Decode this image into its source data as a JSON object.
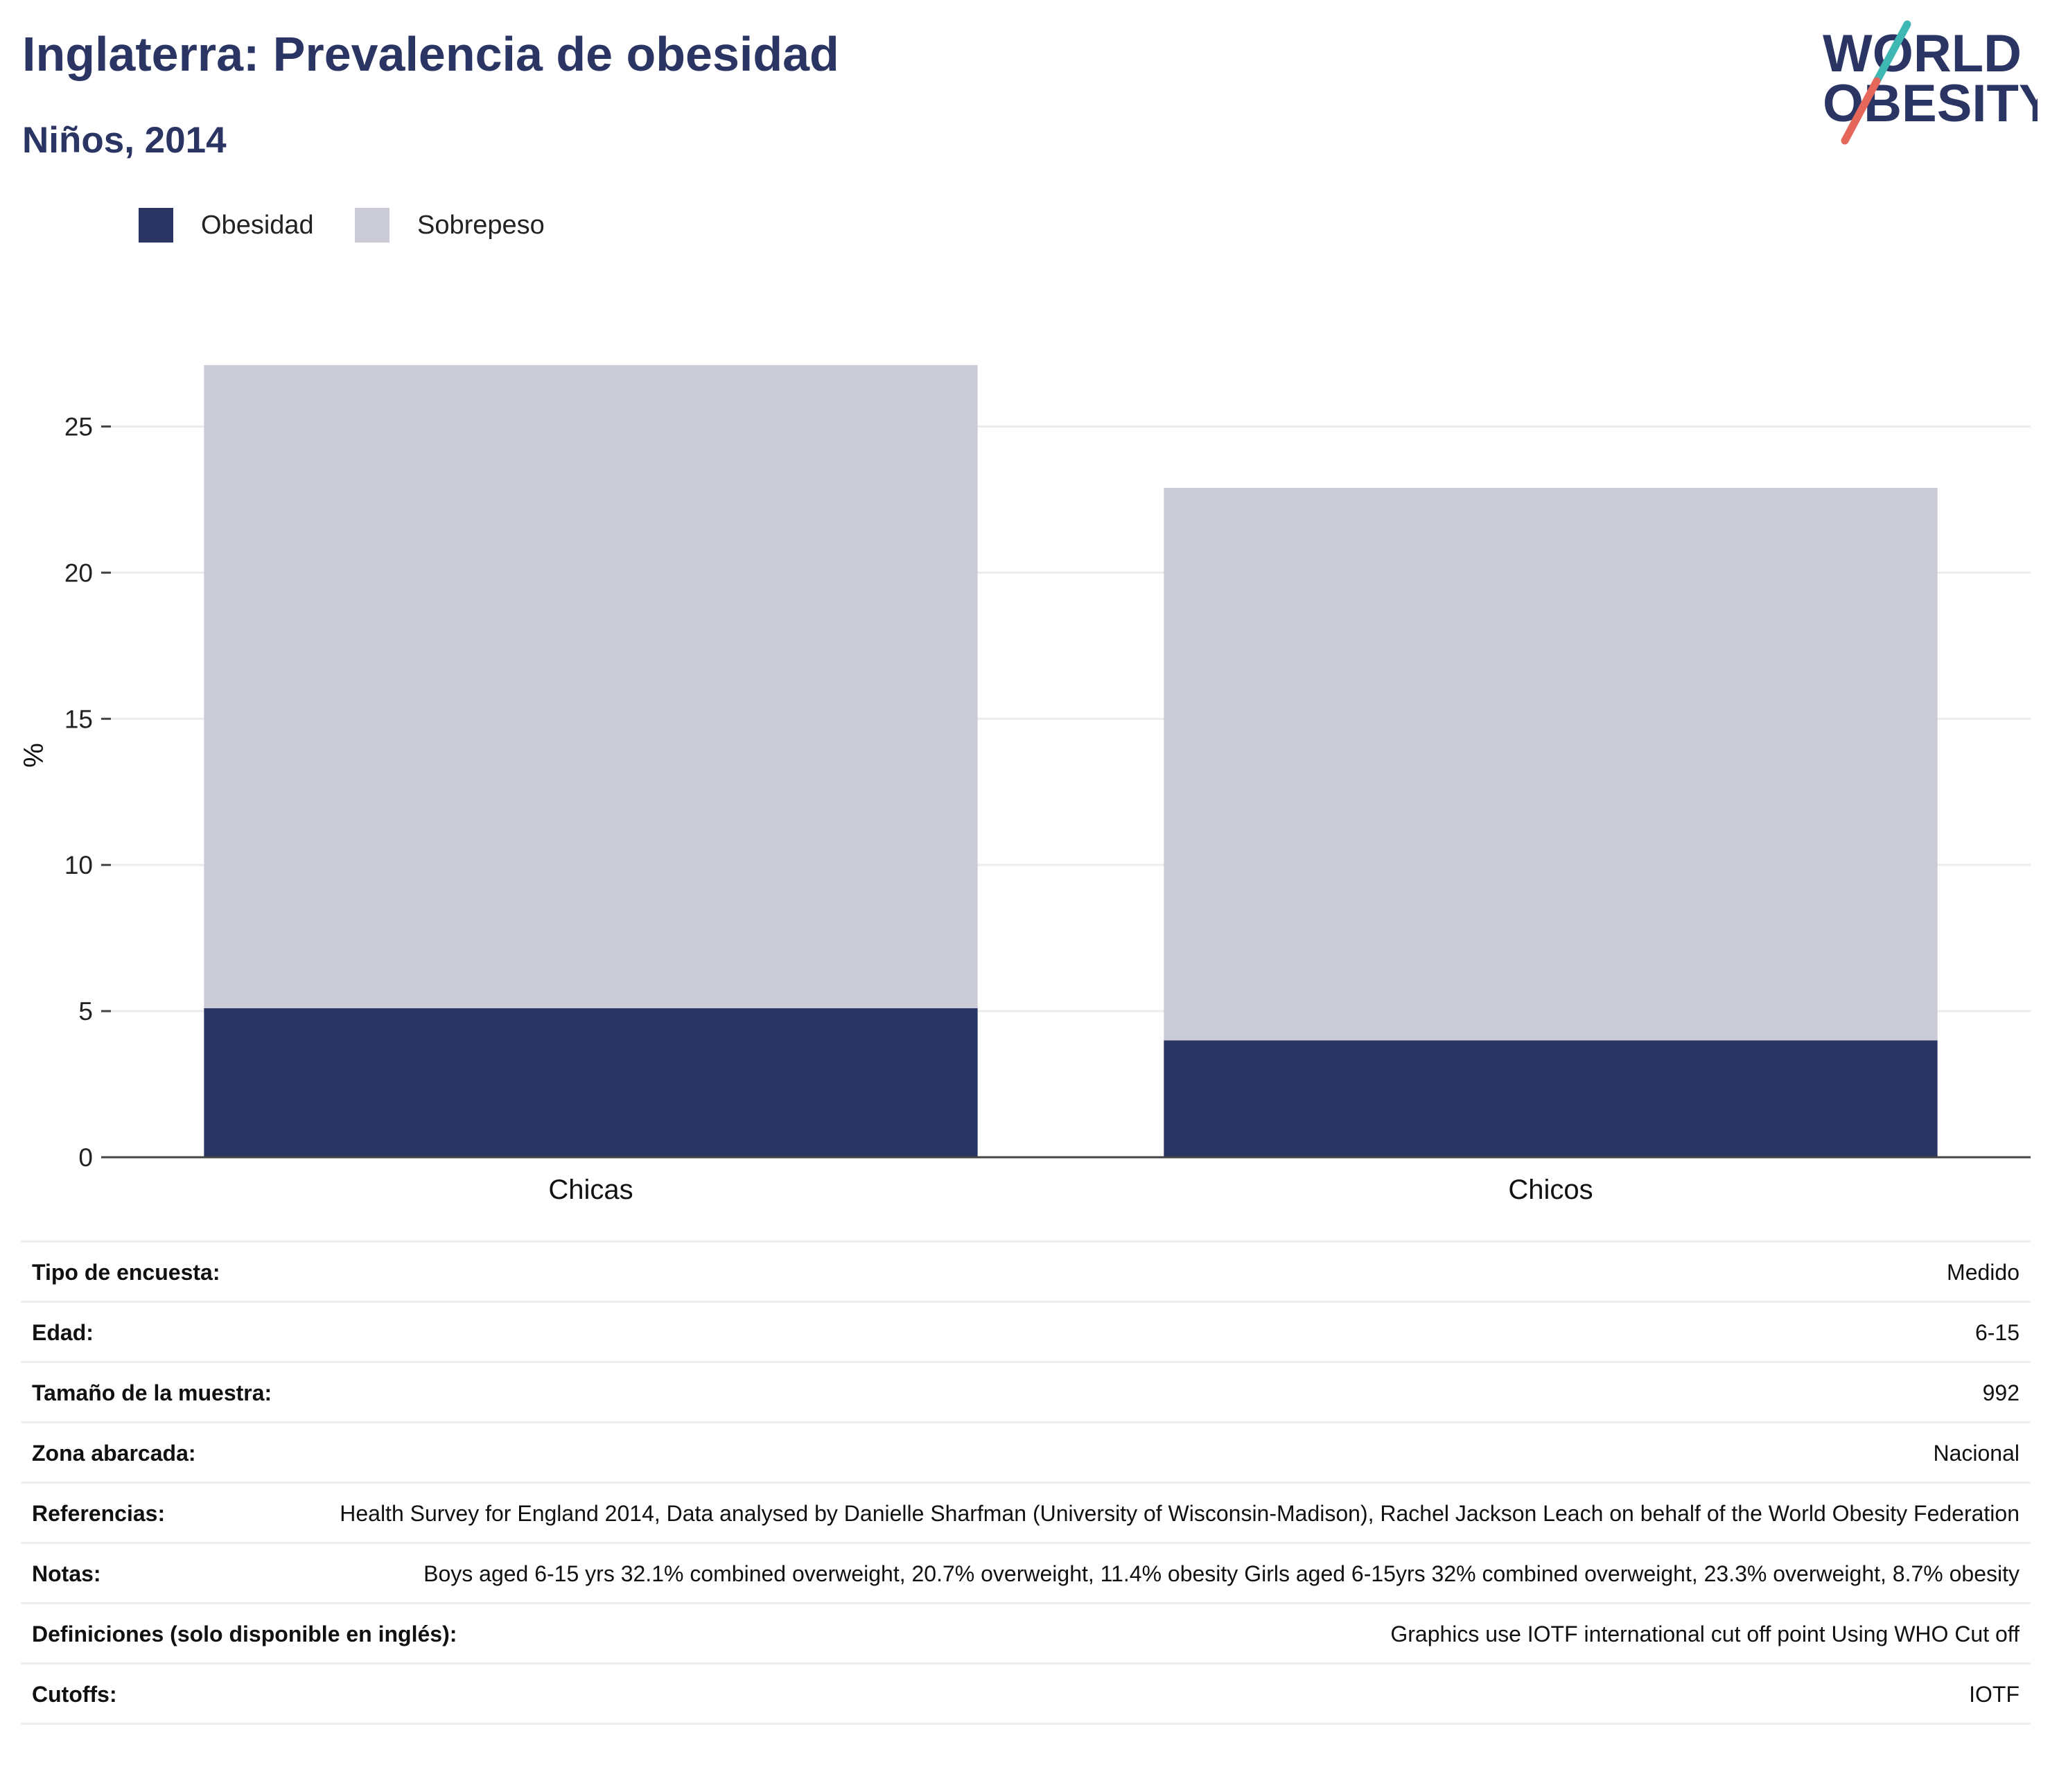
{
  "header": {
    "title": "Inglaterra: Prevalencia de obesidad",
    "subtitle": "Niños, 2014"
  },
  "logo": {
    "line1": "WORLD",
    "line2": "OBESITY",
    "colors": {
      "text": "#2b3564",
      "slash_top": "#3fb8b4",
      "slash_bottom": "#e4675a"
    }
  },
  "legend": [
    {
      "label": "Obesidad",
      "color": "#2b3564"
    },
    {
      "label": "Sobrepeso",
      "color": "#cacbd7"
    }
  ],
  "chart_data": {
    "type": "bar",
    "stacked": true,
    "categories": [
      "Chicas",
      "Chicos"
    ],
    "series": [
      {
        "name": "Obesidad",
        "color": "#2b3564",
        "values": [
          5.1,
          4.0
        ]
      },
      {
        "name": "Sobrepeso",
        "color": "#cacbd7",
        "values": [
          22.0,
          18.9
        ]
      }
    ],
    "ylabel": "%",
    "ylim": [
      0,
      27.5
    ],
    "yticks": [
      0,
      5,
      10,
      15,
      20,
      25
    ],
    "grid": true,
    "legend_position": "top-left"
  },
  "info": [
    {
      "label": "Tipo de encuesta:",
      "value": "Medido"
    },
    {
      "label": "Edad:",
      "value": "6-15"
    },
    {
      "label": "Tamaño de la muestra:",
      "value": "992"
    },
    {
      "label": "Zona abarcada:",
      "value": "Nacional"
    },
    {
      "label": "Referencias:",
      "value": "Health Survey for England 2014, Data analysed by Danielle Sharfman (University of Wisconsin-Madison), Rachel Jackson Leach on behalf of the World Obesity Federation"
    },
    {
      "label": "Notas:",
      "value": "Boys aged 6-15 yrs 32.1% combined overweight, 20.7% overweight, 11.4% obesity Girls aged 6-15yrs 32% combined overweight, 23.3% overweight, 8.7% obesity"
    },
    {
      "label": "Definiciones (solo disponible en inglés):",
      "value": "Graphics use IOTF international cut off point Using WHO Cut off"
    },
    {
      "label": "Cutoffs:",
      "value": "IOTF"
    }
  ]
}
